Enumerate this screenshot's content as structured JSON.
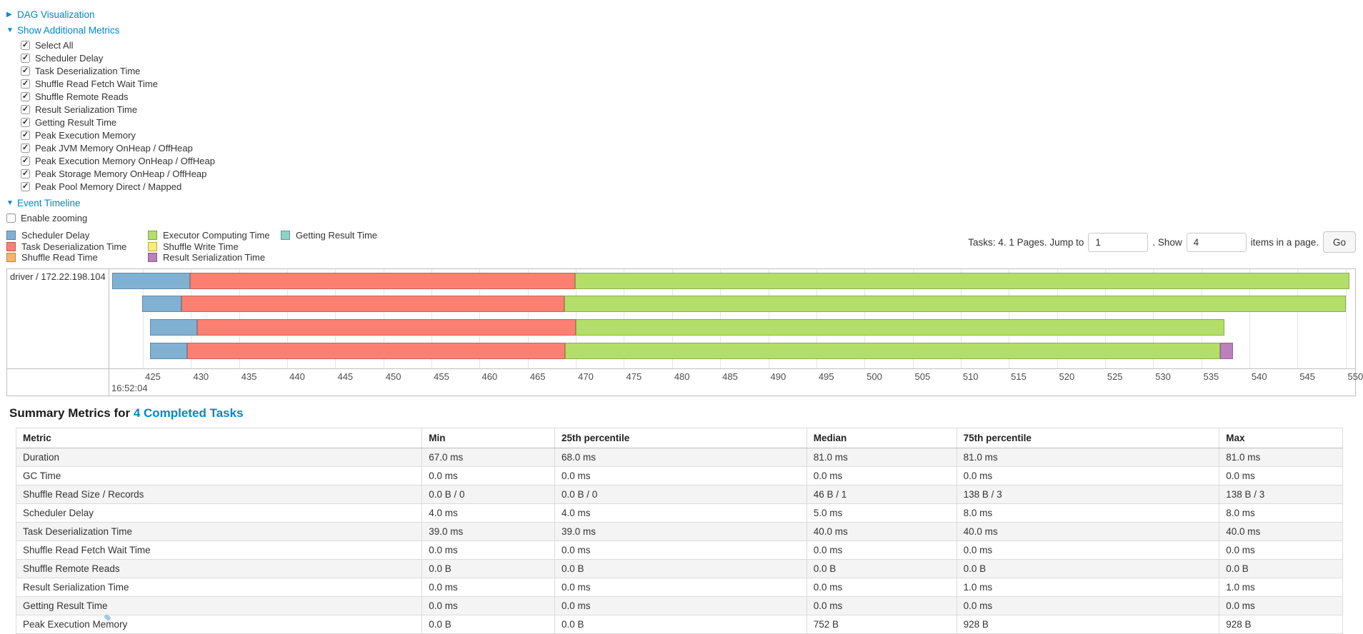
{
  "panels": {
    "dag": {
      "label": "DAG Visualization"
    },
    "metrics": {
      "label": "Show Additional Metrics"
    },
    "timeline": {
      "label": "Event Timeline"
    }
  },
  "metrics_panel": {
    "items": [
      {
        "label": "Select All",
        "checked": true
      },
      {
        "label": "Scheduler Delay",
        "checked": true
      },
      {
        "label": "Task Deserialization Time",
        "checked": true
      },
      {
        "label": "Shuffle Read Fetch Wait Time",
        "checked": true
      },
      {
        "label": "Shuffle Remote Reads",
        "checked": true
      },
      {
        "label": "Result Serialization Time",
        "checked": true
      },
      {
        "label": "Getting Result Time",
        "checked": true
      },
      {
        "label": "Peak Execution Memory",
        "checked": true
      },
      {
        "label": "Peak JVM Memory OnHeap / OffHeap",
        "checked": true
      },
      {
        "label": "Peak Execution Memory OnHeap / OffHeap",
        "checked": true
      },
      {
        "label": "Peak Storage Memory OnHeap / OffHeap",
        "checked": true
      },
      {
        "label": "Peak Pool Memory Direct / Mapped",
        "checked": true
      }
    ]
  },
  "enable_zooming": {
    "label": "Enable zooming",
    "checked": false
  },
  "legend": {
    "columns": [
      [
        {
          "label": "Scheduler Delay",
          "color": "#80B1D3"
        },
        {
          "label": "Task Deserialization Time",
          "color": "#FB8072"
        },
        {
          "label": "Shuffle Read Time",
          "color": "#FDB462"
        }
      ],
      [
        {
          "label": "Executor Computing Time",
          "color": "#B3DE69"
        },
        {
          "label": "Shuffle Write Time",
          "color": "#FFED6F"
        },
        {
          "label": "Result Serialization Time",
          "color": "#BC80BD"
        }
      ],
      [
        {
          "label": "Getting Result Time",
          "color": "#8DD3C7"
        }
      ]
    ]
  },
  "pagination": {
    "tasks_text": "Tasks: 4. 1 Pages. Jump to",
    "jump_value": "1",
    "mid_text": ". Show",
    "show_value": "4",
    "suffix_text": "items in a page.",
    "go_label": "Go"
  },
  "timeline_chart": {
    "row_label": "driver / 172.22.198.104",
    "axis": {
      "min": 421.5,
      "max": 551.0,
      "ticks": [
        425,
        430,
        435,
        440,
        445,
        450,
        455,
        460,
        465,
        470,
        475,
        480,
        485,
        490,
        495,
        500,
        505,
        510,
        515,
        520,
        525,
        530,
        535,
        540,
        545,
        550
      ],
      "start_time_label": "16:52:04"
    },
    "colors": {
      "scheduler_delay": "#80B1D3",
      "task_deserialization": "#FB8072",
      "shuffle_read": "#FDB462",
      "executor_computing": "#B3DE69",
      "shuffle_write": "#FFED6F",
      "result_serialization": "#BC80BD",
      "getting_result": "#8DD3C7"
    },
    "tasks": [
      {
        "start": 421.8,
        "segments": [
          {
            "type": "scheduler_delay",
            "ms": 8.1
          },
          {
            "type": "task_deserialization",
            "ms": 40.0
          },
          {
            "type": "executor_computing",
            "ms": 80.5
          }
        ]
      },
      {
        "start": 424.9,
        "segments": [
          {
            "type": "scheduler_delay",
            "ms": 4.1
          },
          {
            "type": "task_deserialization",
            "ms": 39.8
          },
          {
            "type": "executor_computing",
            "ms": 81.2
          }
        ]
      },
      {
        "start": 425.7,
        "segments": [
          {
            "type": "scheduler_delay",
            "ms": 4.9
          },
          {
            "type": "task_deserialization",
            "ms": 39.4
          },
          {
            "type": "executor_computing",
            "ms": 67.4
          }
        ]
      },
      {
        "start": 425.7,
        "segments": [
          {
            "type": "scheduler_delay",
            "ms": 3.9
          },
          {
            "type": "task_deserialization",
            "ms": 39.3
          },
          {
            "type": "executor_computing",
            "ms": 68.1
          },
          {
            "type": "result_serialization",
            "ms": 1.3
          }
        ]
      }
    ]
  },
  "summary": {
    "heading_prefix": "Summary Metrics for ",
    "link": "4 Completed Tasks"
  },
  "summary_table": {
    "columns": [
      "Metric",
      "Min",
      "25th percentile",
      "Median",
      "75th percentile",
      "Max"
    ],
    "rows": [
      [
        "Duration",
        "67.0 ms",
        "68.0 ms",
        "81.0 ms",
        "81.0 ms",
        "81.0 ms"
      ],
      [
        "GC Time",
        "0.0 ms",
        "0.0 ms",
        "0.0 ms",
        "0.0 ms",
        "0.0 ms"
      ],
      [
        "Shuffle Read Size / Records",
        "0.0 B / 0",
        "0.0 B / 0",
        "46 B / 1",
        "138 B / 3",
        "138 B / 3"
      ],
      [
        "Scheduler Delay",
        "4.0 ms",
        "4.0 ms",
        "5.0 ms",
        "8.0 ms",
        "8.0 ms"
      ],
      [
        "Task Deserialization Time",
        "39.0 ms",
        "39.0 ms",
        "40.0 ms",
        "40.0 ms",
        "40.0 ms"
      ],
      [
        "Shuffle Read Fetch Wait Time",
        "0.0 ms",
        "0.0 ms",
        "0.0 ms",
        "0.0 ms",
        "0.0 ms"
      ],
      [
        "Shuffle Remote Reads",
        "0.0 B",
        "0.0 B",
        "0.0 B",
        "0.0 B",
        "0.0 B"
      ],
      [
        "Result Serialization Time",
        "0.0 ms",
        "0.0 ms",
        "0.0 ms",
        "1.0 ms",
        "1.0 ms"
      ],
      [
        "Getting Result Time",
        "0.0 ms",
        "0.0 ms",
        "0.0 ms",
        "0.0 ms",
        "0.0 ms"
      ],
      [
        "Peak Execution Memory",
        "0.0 B",
        "0.0 B",
        "752 B",
        "928 B",
        "928 B"
      ]
    ]
  }
}
